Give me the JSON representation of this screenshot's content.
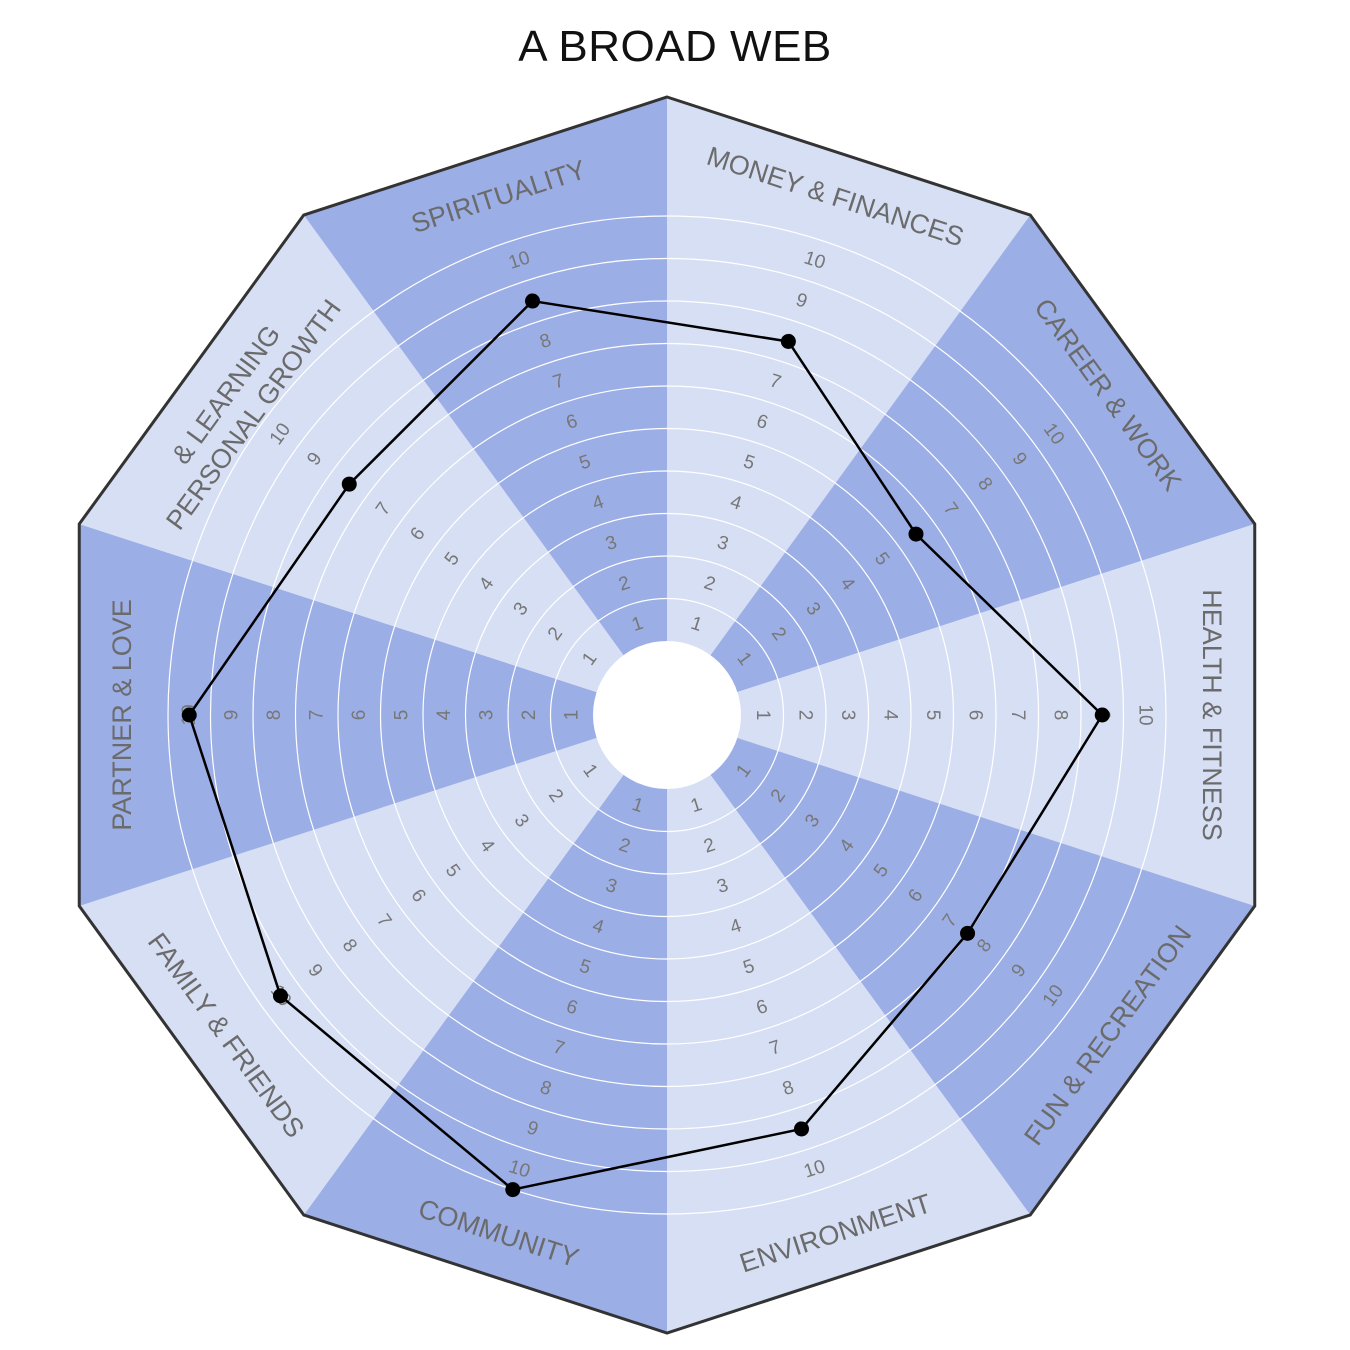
{
  "chart_data": {
    "type": "radar",
    "title": "A BROAD WEB",
    "scale_min": 1,
    "scale_max": 10,
    "ticks": [
      1,
      2,
      3,
      4,
      5,
      6,
      7,
      8,
      9,
      10
    ],
    "categories": [
      [
        "MONEY & FINANCES"
      ],
      [
        "CAREER & WORK"
      ],
      [
        "HEALTH & FITNESS"
      ],
      [
        "FUN & RECREATION"
      ],
      [
        "ENVIRONMENT"
      ],
      [
        "COMMUNITY"
      ],
      [
        "FAMILY & FRIENDS"
      ],
      [
        "PARTNER & LOVE"
      ],
      [
        "PERSONAL GROWTH",
        "& LEARNING"
      ],
      [
        "SPIRITUALITY"
      ]
    ],
    "values": [
      7.5,
      5.5,
      8.5,
      7,
      8.5,
      10,
      9.5,
      9.5,
      7.5,
      8.5
    ],
    "colors": {
      "band_dark": "#9caee6",
      "band_light": "#d7dff4",
      "border": "#333333",
      "ring": "#ffffff",
      "series": "#000000"
    }
  }
}
